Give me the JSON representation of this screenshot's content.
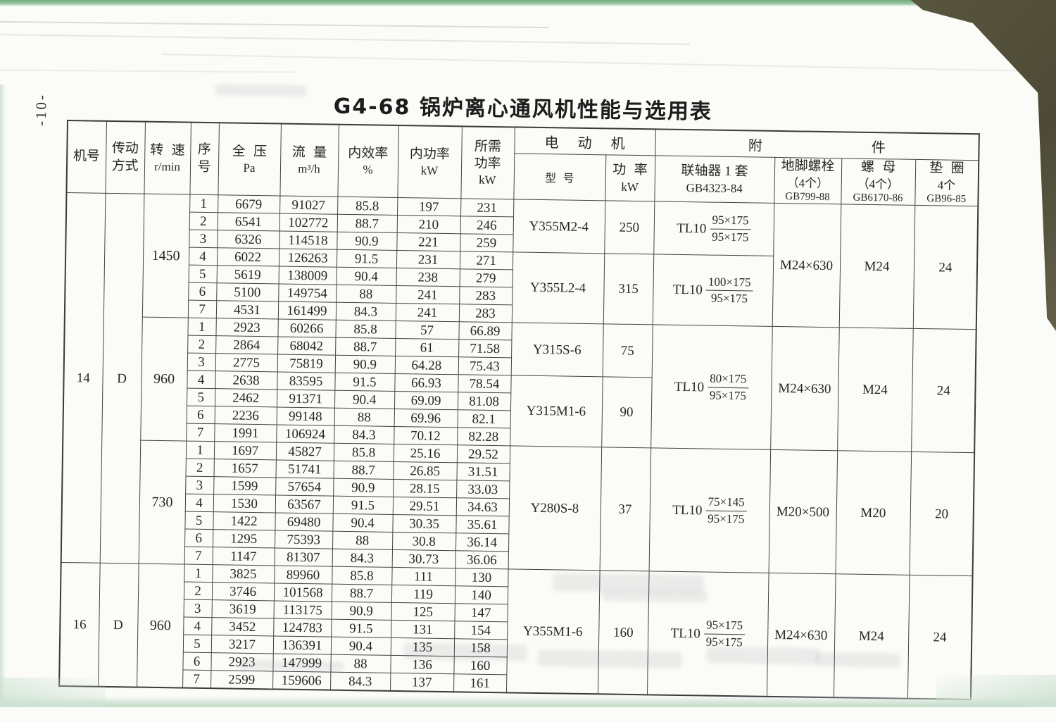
{
  "page": {
    "side_number": "-10-",
    "title": "G4-68 锅炉离心通风机性能与选用表"
  },
  "table": {
    "headers": {
      "machine_no": [
        "机号"
      ],
      "drive": [
        "传动",
        "方式"
      ],
      "speed": [
        "转 速",
        "r/min"
      ],
      "seq": [
        "序",
        "号"
      ],
      "pressure": [
        "全 压",
        "Pa"
      ],
      "flow": [
        "流 量",
        "m³/h"
      ],
      "efficiency": [
        "内效率",
        "%"
      ],
      "power_internal": [
        "内功率",
        "kW"
      ],
      "power_required": [
        "所需",
        "功率",
        "kW"
      ],
      "motor_group": "电 动 机",
      "accessory_group": "附 件",
      "model": "型 号",
      "motor_power": [
        "功 率",
        "kW"
      ],
      "coupling": [
        "联轴器 1 套",
        "GB4323-84"
      ],
      "anchor_bolt": [
        "地脚螺栓",
        "（4个）",
        "GB799-88"
      ],
      "nut": [
        "螺 母",
        "（4个）",
        "GB6170-86"
      ],
      "washer": [
        "垫 圈",
        "4个",
        "GB96-85"
      ]
    },
    "groups": [
      {
        "machine_no": "14",
        "drive": "D",
        "blocks": [
          {
            "speed": "1450",
            "rows": [
              [
                "1",
                "6679",
                "91027",
                "85.8",
                "197",
                "231"
              ],
              [
                "2",
                "6541",
                "102772",
                "88.7",
                "210",
                "246"
              ],
              [
                "3",
                "6326",
                "114518",
                "90.9",
                "221",
                "259"
              ],
              [
                "4",
                "6022",
                "126263",
                "91.5",
                "231",
                "271"
              ],
              [
                "5",
                "5619",
                "138009",
                "90.4",
                "238",
                "279"
              ],
              [
                "6",
                "5100",
                "149754",
                "88",
                "241",
                "283"
              ],
              [
                "7",
                "4531",
                "161499",
                "84.3",
                "241",
                "283"
              ]
            ],
            "model": [
              {
                "text": "Y355M2-4",
                "span": 3
              },
              {
                "text": "Y355L2-4",
                "span": 4
              }
            ],
            "motor_power": [
              {
                "text": "250",
                "span": 3
              },
              {
                "text": "315",
                "span": 4
              }
            ],
            "coupling": [
              {
                "prefix": "TL10",
                "num": "95×175",
                "den": "95×175",
                "span": 3
              },
              {
                "prefix": "TL10",
                "num": "100×175",
                "den": "95×175",
                "span": 4
              }
            ],
            "bolt": [
              {
                "text": "M24×630",
                "span": 7
              }
            ],
            "nut": [
              {
                "text": "M24",
                "span": 7
              }
            ],
            "washer": [
              {
                "text": "24",
                "span": 7
              }
            ]
          },
          {
            "speed": "960",
            "rows": [
              [
                "1",
                "2923",
                "60266",
                "85.8",
                "57",
                "66.89"
              ],
              [
                "2",
                "2864",
                "68042",
                "88.7",
                "61",
                "71.58"
              ],
              [
                "3",
                "2775",
                "75819",
                "90.9",
                "64.28",
                "75.43"
              ],
              [
                "4",
                "2638",
                "83595",
                "91.5",
                "66.93",
                "78.54"
              ],
              [
                "5",
                "2462",
                "91371",
                "90.4",
                "69.09",
                "81.08"
              ],
              [
                "6",
                "2236",
                "99148",
                "88",
                "69.96",
                "82.1"
              ],
              [
                "7",
                "1991",
                "106924",
                "84.3",
                "70.12",
                "82.28"
              ]
            ],
            "model": [
              {
                "text": "Y315S-6",
                "span": 3
              },
              {
                "text": "Y315M1-6",
                "span": 4
              }
            ],
            "motor_power": [
              {
                "text": "75",
                "span": 3
              },
              {
                "text": "90",
                "span": 4
              }
            ],
            "coupling": [
              {
                "prefix": "TL10",
                "num": "80×175",
                "den": "95×175",
                "span": 7
              }
            ],
            "bolt": [
              {
                "text": "M24×630",
                "span": 7
              }
            ],
            "nut": [
              {
                "text": "M24",
                "span": 7
              }
            ],
            "washer": [
              {
                "text": "24",
                "span": 7
              }
            ]
          },
          {
            "speed": "730",
            "rows": [
              [
                "1",
                "1697",
                "45827",
                "85.8",
                "25.16",
                "29.52"
              ],
              [
                "2",
                "1657",
                "51741",
                "88.7",
                "26.85",
                "31.51"
              ],
              [
                "3",
                "1599",
                "57654",
                "90.9",
                "28.15",
                "33.03"
              ],
              [
                "4",
                "1530",
                "63567",
                "91.5",
                "29.51",
                "34.63"
              ],
              [
                "5",
                "1422",
                "69480",
                "90.4",
                "30.35",
                "35.61"
              ],
              [
                "6",
                "1295",
                "75393",
                "88",
                "30.8",
                "36.14"
              ],
              [
                "7",
                "1147",
                "81307",
                "84.3",
                "30.73",
                "36.06"
              ]
            ],
            "model": [
              {
                "text": "Y280S-8",
                "span": 7
              }
            ],
            "motor_power": [
              {
                "text": "37",
                "span": 7
              }
            ],
            "coupling": [
              {
                "prefix": "TL10",
                "num": "75×145",
                "den": "95×175",
                "span": 7
              }
            ],
            "bolt": [
              {
                "text": "M20×500",
                "span": 7
              }
            ],
            "nut": [
              {
                "text": "M20",
                "span": 7
              }
            ],
            "washer": [
              {
                "text": "20",
                "span": 7
              }
            ]
          }
        ]
      },
      {
        "machine_no": "16",
        "drive": "D",
        "blocks": [
          {
            "speed": "960",
            "rows": [
              [
                "1",
                "3825",
                "89960",
                "85.8",
                "111",
                "130"
              ],
              [
                "2",
                "3746",
                "101568",
                "88.7",
                "119",
                "140"
              ],
              [
                "3",
                "3619",
                "113175",
                "90.9",
                "125",
                "147"
              ],
              [
                "4",
                "3452",
                "124783",
                "91.5",
                "131",
                "154"
              ],
              [
                "5",
                "3217",
                "136391",
                "90.4",
                "135",
                "158"
              ],
              [
                "6",
                "2923",
                "147999",
                "88",
                "136",
                "160"
              ],
              [
                "7",
                "2599",
                "159606",
                "84.3",
                "137",
                "161"
              ]
            ],
            "model": [
              {
                "text": "Y355M1-6",
                "span": 7
              }
            ],
            "motor_power": [
              {
                "text": "160",
                "span": 7
              }
            ],
            "coupling": [
              {
                "prefix": "TL10",
                "num": "95×175",
                "den": "95×175",
                "span": 7
              }
            ],
            "bolt": [
              {
                "text": "M24×630",
                "span": 7
              }
            ],
            "nut": [
              {
                "text": "M24",
                "span": 7
              }
            ],
            "washer": [
              {
                "text": "24",
                "span": 7
              }
            ]
          }
        ]
      }
    ]
  }
}
